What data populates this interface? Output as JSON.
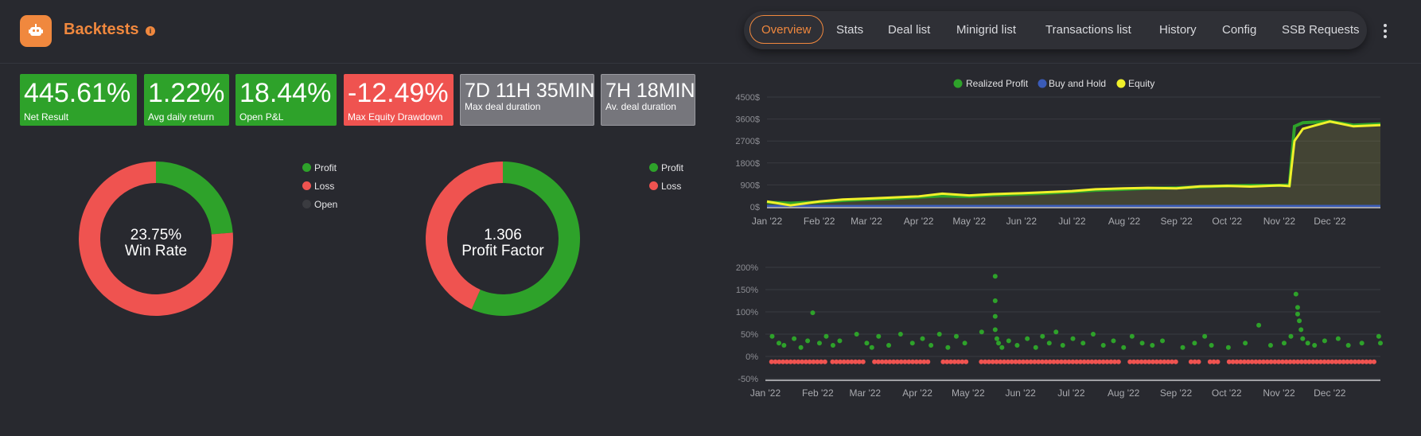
{
  "header": {
    "title": "Backtests",
    "info_icon": "info-icon",
    "tabs": [
      "Overview",
      "Stats",
      "Deal list",
      "Minigrid list",
      "Transactions list",
      "History",
      "Config",
      "SSB Requests"
    ],
    "active_tab": "Overview",
    "more_icon": "kebab-menu-icon"
  },
  "stats": [
    {
      "value": "445.61%",
      "label": "Net Result",
      "color": "#2ea22a"
    },
    {
      "value": "1.22%",
      "label": "Avg daily return",
      "color": "#2ea22a"
    },
    {
      "value": "18.44%",
      "label": "Open P&L",
      "color": "#2ea22a"
    },
    {
      "value": "-12.49%",
      "label": "Max Equity Drawdown",
      "color": "#ef5350"
    },
    {
      "value": "7D 11H 35MIN",
      "label": "Max deal duration",
      "color": "#76767c"
    },
    {
      "value": "7H 18MIN",
      "label": "Av. deal duration",
      "color": "#76767c"
    }
  ],
  "win_rate": {
    "value": "23.75%",
    "label": "Win Rate",
    "legend": [
      "Profit",
      "Loss",
      "Open"
    ],
    "legend_colors": [
      "#2ea22a",
      "#ef5350",
      "#3a3b40"
    ],
    "profit_fraction": 0.2375
  },
  "profit_factor": {
    "value": "1.306",
    "label": "Profit Factor",
    "legend": [
      "Profit",
      "Loss"
    ],
    "legend_colors": [
      "#2ea22a",
      "#ef5350"
    ],
    "profit_fraction": 0.5663
  },
  "colors": {
    "profit": "#2ea22a",
    "loss": "#ef5350",
    "equity": "#f0f02a",
    "buy_hold": "#3a5bb8",
    "accent": "#f0883e"
  },
  "chart_data": [
    {
      "type": "line",
      "legend": [
        "Realized Profit",
        "Buy and Hold",
        "Equity"
      ],
      "legend_placement": "top-center",
      "x_ticks": [
        "Jan '22",
        "Feb '22",
        "Mar '22",
        "Apr '22",
        "May '22",
        "Jun '22",
        "Jul '22",
        "Aug '22",
        "Sep '22",
        "Oct '22",
        "Nov '22",
        "Dec '22"
      ],
      "y_ticks": [
        "4500$",
        "3600$",
        "2700$",
        "1800$",
        "900$",
        "0$"
      ],
      "ylim": [
        0,
        4500
      ],
      "x": [
        "2022-01-01",
        "2022-01-15",
        "2022-02-01",
        "2022-02-15",
        "2022-03-01",
        "2022-03-15",
        "2022-04-01",
        "2022-04-15",
        "2022-05-01",
        "2022-05-15",
        "2022-06-01",
        "2022-06-15",
        "2022-07-01",
        "2022-07-15",
        "2022-08-01",
        "2022-08-15",
        "2022-09-01",
        "2022-09-15",
        "2022-10-01",
        "2022-10-15",
        "2022-11-01",
        "2022-11-07",
        "2022-11-10",
        "2022-11-15",
        "2022-12-01",
        "2022-12-15",
        "2022-12-31"
      ],
      "series": [
        {
          "name": "Realized Profit",
          "values": [
            190,
            150,
            200,
            260,
            310,
            340,
            400,
            450,
            420,
            480,
            520,
            560,
            620,
            680,
            720,
            760,
            780,
            820,
            860,
            880,
            880,
            900,
            3300,
            3450,
            3500,
            3350,
            3400
          ]
        },
        {
          "name": "Buy and Hold",
          "values": [
            40,
            40,
            40,
            40,
            40,
            40,
            40,
            40,
            40,
            40,
            40,
            40,
            40,
            40,
            40,
            40,
            40,
            40,
            40,
            40,
            40,
            40,
            40,
            40,
            40,
            40,
            40
          ]
        },
        {
          "name": "Equity",
          "values": [
            220,
            60,
            220,
            300,
            340,
            380,
            430,
            540,
            470,
            520,
            560,
            600,
            650,
            720,
            760,
            780,
            760,
            840,
            860,
            830,
            880,
            850,
            2700,
            3200,
            3500,
            3300,
            3350
          ]
        }
      ]
    },
    {
      "type": "scatter",
      "x_ticks": [
        "Jan '22",
        "Feb '22",
        "Mar '22",
        "Apr '22",
        "May '22",
        "Jun '22",
        "Jul '22",
        "Aug '22",
        "Sep '22",
        "Oct '22",
        "Nov '22",
        "Dec '22"
      ],
      "y_ticks": [
        "200%",
        "150%",
        "100%",
        "50%",
        "0%",
        "-50%"
      ],
      "ylim": [
        -50,
        200
      ],
      "series": [
        {
          "name": "Profit",
          "points": [
            [
              "2022-01-05",
              45
            ],
            [
              "2022-01-09",
              30
            ],
            [
              "2022-01-12",
              25
            ],
            [
              "2022-01-18",
              40
            ],
            [
              "2022-01-22",
              20
            ],
            [
              "2022-01-26",
              35
            ],
            [
              "2022-01-29",
              98
            ],
            [
              "2022-02-02",
              30
            ],
            [
              "2022-02-06",
              45
            ],
            [
              "2022-02-10",
              25
            ],
            [
              "2022-02-14",
              35
            ],
            [
              "2022-02-24",
              50
            ],
            [
              "2022-03-02",
              30
            ],
            [
              "2022-03-05",
              20
            ],
            [
              "2022-03-09",
              45
            ],
            [
              "2022-03-15",
              25
            ],
            [
              "2022-03-22",
              50
            ],
            [
              "2022-03-29",
              30
            ],
            [
              "2022-04-04",
              40
            ],
            [
              "2022-04-09",
              25
            ],
            [
              "2022-04-14",
              50
            ],
            [
              "2022-04-19",
              20
            ],
            [
              "2022-04-24",
              45
            ],
            [
              "2022-04-29",
              30
            ],
            [
              "2022-05-09",
              55
            ],
            [
              "2022-05-17",
              180
            ],
            [
              "2022-05-17",
              125
            ],
            [
              "2022-05-17",
              90
            ],
            [
              "2022-05-17",
              60
            ],
            [
              "2022-05-18",
              40
            ],
            [
              "2022-05-19",
              30
            ],
            [
              "2022-05-21",
              20
            ],
            [
              "2022-05-25",
              35
            ],
            [
              "2022-05-30",
              25
            ],
            [
              "2022-06-05",
              40
            ],
            [
              "2022-06-10",
              20
            ],
            [
              "2022-06-14",
              45
            ],
            [
              "2022-06-18",
              30
            ],
            [
              "2022-06-22",
              55
            ],
            [
              "2022-06-26",
              25
            ],
            [
              "2022-07-02",
              40
            ],
            [
              "2022-07-08",
              30
            ],
            [
              "2022-07-14",
              50
            ],
            [
              "2022-07-20",
              25
            ],
            [
              "2022-07-26",
              35
            ],
            [
              "2022-08-01",
              20
            ],
            [
              "2022-08-06",
              45
            ],
            [
              "2022-08-12",
              30
            ],
            [
              "2022-08-18",
              25
            ],
            [
              "2022-08-24",
              35
            ],
            [
              "2022-09-05",
              20
            ],
            [
              "2022-09-12",
              30
            ],
            [
              "2022-09-18",
              45
            ],
            [
              "2022-09-22",
              25
            ],
            [
              "2022-10-02",
              20
            ],
            [
              "2022-10-12",
              30
            ],
            [
              "2022-10-20",
              70
            ],
            [
              "2022-10-27",
              25
            ],
            [
              "2022-11-04",
              30
            ],
            [
              "2022-11-08",
              45
            ],
            [
              "2022-11-11",
              140
            ],
            [
              "2022-11-12",
              110
            ],
            [
              "2022-11-12",
              95
            ],
            [
              "2022-11-13",
              80
            ],
            [
              "2022-11-14",
              60
            ],
            [
              "2022-11-15",
              40
            ],
            [
              "2022-11-18",
              30
            ],
            [
              "2022-11-22",
              25
            ],
            [
              "2022-11-28",
              35
            ],
            [
              "2022-12-06",
              40
            ],
            [
              "2022-12-12",
              25
            ],
            [
              "2022-12-20",
              30
            ],
            [
              "2022-12-30",
              45
            ],
            [
              "2022-12-31",
              30
            ]
          ]
        },
        {
          "name": "Loss",
          "points_note": "",
          "y": -12
        }
      ]
    }
  ]
}
